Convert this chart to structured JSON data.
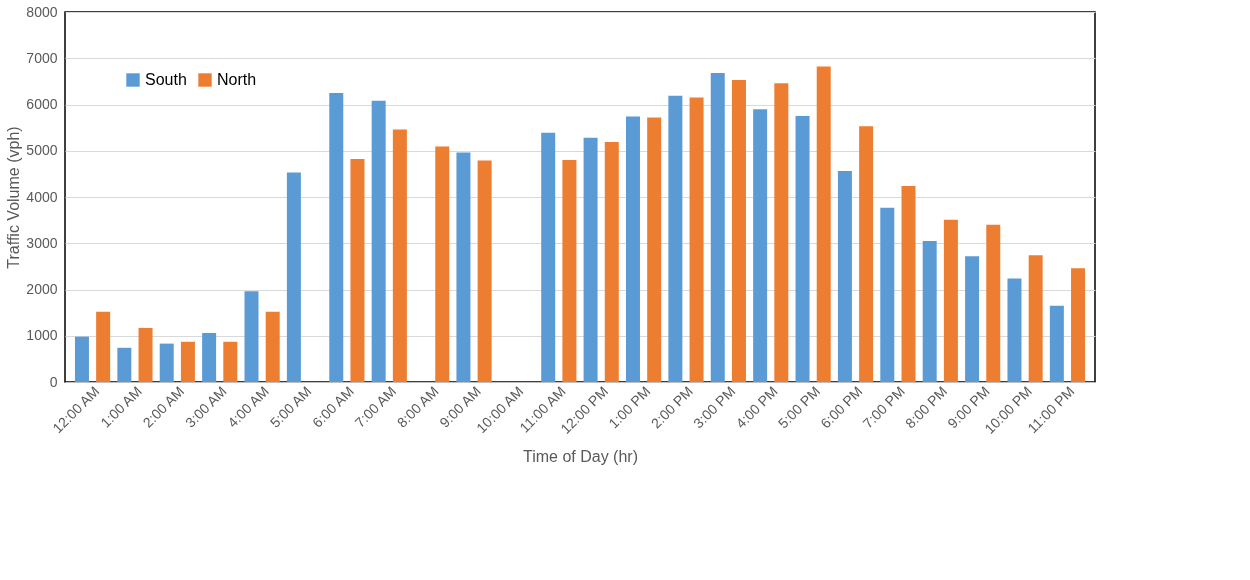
{
  "chart_data": {
    "type": "bar",
    "xlabel": "Time of Day (hr)",
    "ylabel": "Traffic Volume (vph)",
    "categories": [
      "12:00 AM",
      "1:00 AM",
      "2:00 AM",
      "3:00 AM",
      "4:00 AM",
      "5:00 AM",
      "6:00 AM",
      "7:00 AM",
      "8:00 AM",
      "9:00 AM",
      "10:00 AM",
      "11:00 AM",
      "12:00 PM",
      "1:00 PM",
      "2:00 PM",
      "3:00 PM",
      "4:00 PM",
      "5:00 PM",
      "6:00 PM",
      "7:00 PM",
      "8:00 PM",
      "9:00 PM",
      "10:00 PM",
      "11:00 PM"
    ],
    "series": [
      {
        "name": "South",
        "color": "#5b9bd5",
        "values": [
          980,
          740,
          830,
          1060,
          1960,
          4530,
          6250,
          6080,
          null,
          4960,
          null,
          5390,
          5280,
          5740,
          6190,
          6680,
          5900,
          5750,
          4560,
          3770,
          3050,
          2720,
          2240,
          1650
        ]
      },
      {
        "name": "North",
        "color": "#ed7d31",
        "values": [
          1520,
          1170,
          870,
          870,
          1520,
          null,
          4820,
          5460,
          5090,
          4790,
          null,
          4800,
          5190,
          5720,
          6150,
          6530,
          6460,
          6820,
          5530,
          4240,
          3510,
          3400,
          2740,
          2460
        ]
      }
    ],
    "ylim": [
      0,
      8000
    ],
    "yticks": [
      0,
      1000,
      2000,
      3000,
      4000,
      5000,
      6000,
      7000,
      8000
    ],
    "grid": "y",
    "legend": "top left"
  }
}
